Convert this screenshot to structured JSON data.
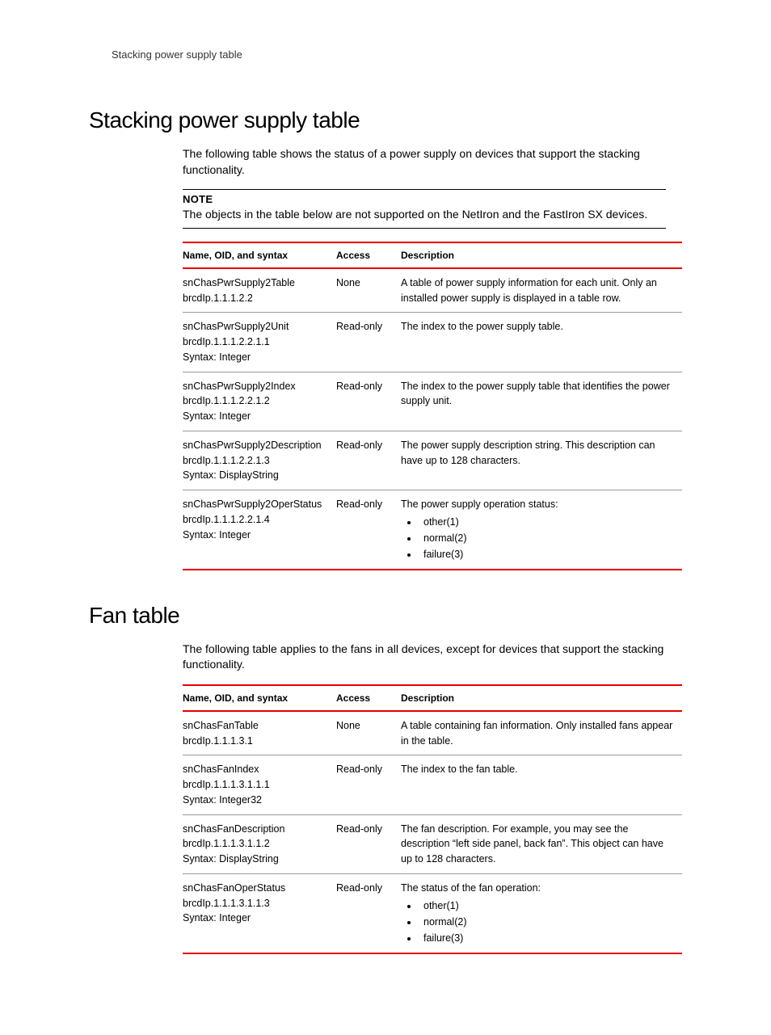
{
  "colors": {
    "rule_red": "#e60000",
    "rule_gray": "#999999",
    "text": "#000000",
    "background": "#ffffff"
  },
  "breadcrumb": "Stacking power supply table",
  "section1": {
    "heading": "Stacking power supply table",
    "intro": "The following table shows the status of a power supply on devices that support the stacking functionality.",
    "note_label": "NOTE",
    "note_text": "The objects in the table below are not supported on the NetIron and the FastIron SX devices.",
    "table": {
      "columns": [
        "Name, OID, and syntax",
        "Access",
        "Description"
      ],
      "rows": [
        {
          "name_lines": [
            "snChasPwrSupply2Table",
            "brcdIp.1.1.1.2.2"
          ],
          "access": "None",
          "description": "A table of power supply information for each unit. Only an installed power supply is displayed in a table row."
        },
        {
          "name_lines": [
            "snChasPwrSupply2Unit",
            "brcdIp.1.1.1.2.2.1.1",
            "Syntax: Integer"
          ],
          "access": "Read-only",
          "description": "The index to the power supply table."
        },
        {
          "name_lines": [
            "snChasPwrSupply2Index",
            "brcdIp.1.1.1.2.2.1.2",
            "Syntax: Integer"
          ],
          "access": "Read-only",
          "description": "The index to the power supply table that identifies the power supply unit."
        },
        {
          "name_lines": [
            "snChasPwrSupply2Description",
            "brcdIp.1.1.1.2.2.1.3",
            "Syntax: DisplayString"
          ],
          "access": "Read-only",
          "description": "The power supply description string. This description can have up to 128 characters."
        },
        {
          "name_lines": [
            "snChasPwrSupply2OperStatus",
            "brcdIp.1.1.1.2.2.1.4",
            "Syntax: Integer"
          ],
          "access": "Read-only",
          "description_intro": "The power supply operation status:",
          "description_list": [
            "other(1)",
            "normal(2)",
            "failure(3)"
          ]
        }
      ]
    }
  },
  "section2": {
    "heading": "Fan table",
    "intro": "The following table applies to the fans in all devices, except for devices that support the stacking functionality.",
    "table": {
      "columns": [
        "Name, OID, and syntax",
        "Access",
        "Description"
      ],
      "rows": [
        {
          "name_lines": [
            "snChasFanTable",
            "brcdIp.1.1.1.3.1"
          ],
          "access": "None",
          "description": "A table containing fan information. Only installed fans appear in the table."
        },
        {
          "name_lines": [
            "snChasFanIndex",
            "brcdIp.1.1.1.3.1.1.1",
            "Syntax: Integer32"
          ],
          "access": "Read-only",
          "description": "The index to the fan table."
        },
        {
          "name_lines": [
            "snChasFanDescription",
            "brcdIp.1.1.1.3.1.1.2",
            "Syntax: DisplayString"
          ],
          "access": "Read-only",
          "description": "The fan description. For example, you may see the description “left side panel, back fan”. This object can have up to 128 characters."
        },
        {
          "name_lines": [
            "snChasFanOperStatus",
            "brcdIp.1.1.1.3.1.1.3",
            "Syntax: Integer"
          ],
          "access": "Read-only",
          "description_intro": "The status of the fan operation:",
          "description_list": [
            "other(1)",
            "normal(2)",
            "failure(3)"
          ]
        }
      ]
    }
  }
}
